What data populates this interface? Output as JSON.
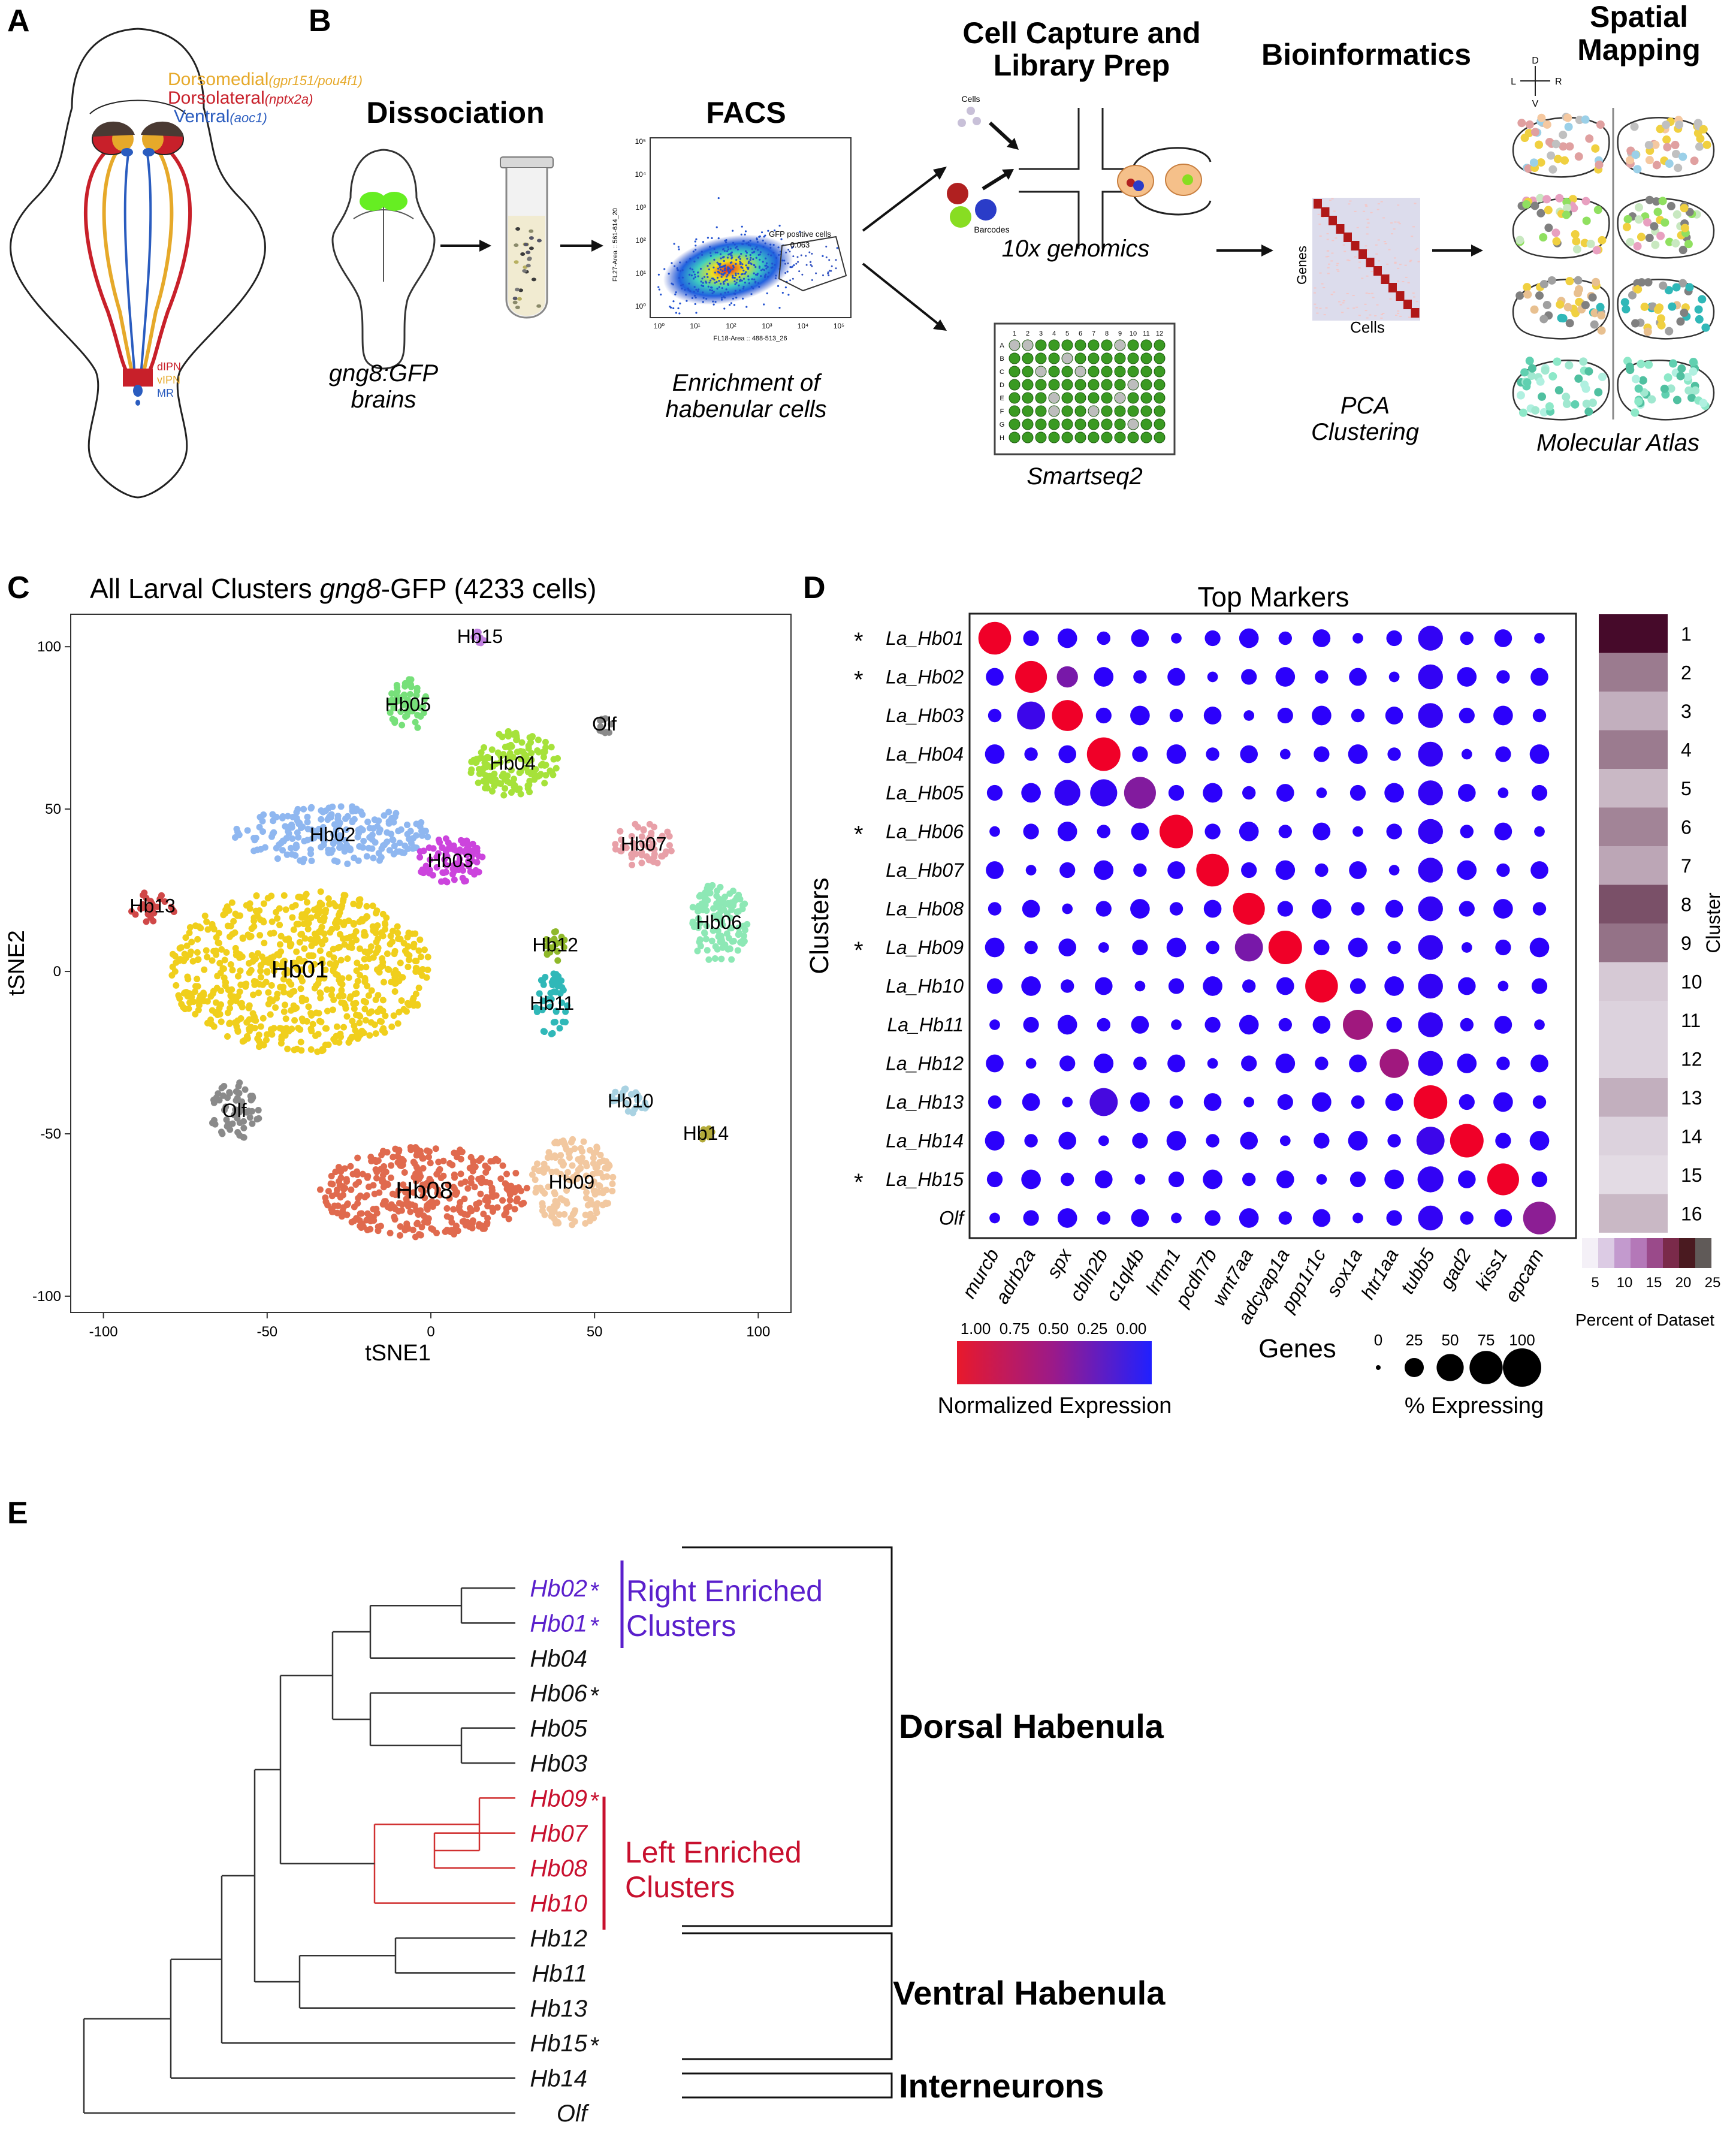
{
  "panel_letters": [
    "A",
    "B",
    "C",
    "D",
    "E"
  ],
  "panel_a": {
    "regions": [
      {
        "name": "Dorsomedial",
        "gene": "(gpr151/pou4f1)",
        "color": "#e6a92a"
      },
      {
        "name": "Dorsolateral",
        "gene": "(nptx2a)",
        "color": "#c8202a"
      },
      {
        "name": "Ventral",
        "gene": "(aoc1)",
        "color": "#2a5cbf"
      }
    ],
    "targets": [
      {
        "label": "dIPN",
        "color": "#c8202a"
      },
      {
        "label": "vIPN",
        "color": "#e6a92a"
      },
      {
        "label": "MR",
        "color": "#2a5cbf"
      }
    ]
  },
  "panel_b": {
    "dissociation": {
      "title": "Dissociation",
      "caption_line1": "gng8:GFP",
      "caption_line2": "brains"
    },
    "facs": {
      "title": "FACS",
      "gate_label": "GFP positive cells",
      "gate_value": "0.063",
      "y_axis": "FL27-Area :: 561-614_20",
      "x_axis": "FL18-Area :: 488-513_26",
      "ticks": [
        "10⁰",
        "10¹",
        "10²",
        "10³",
        "10⁴",
        "10⁵"
      ],
      "caption_line1": "Enrichment of",
      "caption_line2": "habenular cells"
    },
    "capture": {
      "title_line1": "Cell Capture and",
      "title_line2": "Library Prep",
      "cells_label": "Cells",
      "barcodes_label": "Barcodes",
      "method1": "10x genomics",
      "method2": "Smartseq2",
      "plate_cols": [
        "1",
        "2",
        "3",
        "4",
        "5",
        "6",
        "7",
        "8",
        "9",
        "10",
        "11",
        "12"
      ],
      "plate_rows": [
        "A",
        "B",
        "C",
        "D",
        "E",
        "F",
        "G",
        "H"
      ]
    },
    "bioinformatics": {
      "title": "Bioinformatics",
      "genes_label": "Genes",
      "cells_label": "Cells",
      "caption_line1": "PCA",
      "caption_line2": "Clustering"
    },
    "spatial": {
      "title_line1": "Spatial",
      "title_line2": "Mapping",
      "compass": [
        "D",
        "L",
        "R",
        "V"
      ],
      "caption": "Molecular Atlas"
    }
  },
  "panel_c": {
    "title_prefix": "All Larval Clusters ",
    "title_gene": "gng8",
    "title_suffix": "-GFP (4233 cells)",
    "chart_data": {
      "type": "scatter",
      "xlabel": "tSNE1",
      "ylabel": "tSNE2",
      "xlim": [
        -110,
        110
      ],
      "ylim": [
        -105,
        110
      ],
      "xticks": [
        -100,
        -50,
        0,
        50,
        100
      ],
      "yticks": [
        -100,
        -50,
        0,
        50,
        100
      ],
      "clusters": [
        {
          "label": "Hb01",
          "cx": -40,
          "cy": 0,
          "rx": 40,
          "ry": 25,
          "n": 700,
          "color": "#f0cf1c"
        },
        {
          "label": "Hb02",
          "cx": -30,
          "cy": 42,
          "rx": 30,
          "ry": 9,
          "n": 220,
          "color": "#8fb7f0"
        },
        {
          "label": "Hb03",
          "cx": 6,
          "cy": 34,
          "rx": 11,
          "ry": 7,
          "n": 90,
          "color": "#cc44dd"
        },
        {
          "label": "Hb04",
          "cx": 25,
          "cy": 64,
          "rx": 14,
          "ry": 10,
          "n": 150,
          "color": "#a6e23a"
        },
        {
          "label": "Hb05",
          "cx": -7,
          "cy": 82,
          "rx": 6,
          "ry": 8,
          "n": 55,
          "color": "#77e07a"
        },
        {
          "label": "Hb06",
          "cx": 88,
          "cy": 15,
          "rx": 9,
          "ry": 13,
          "n": 120,
          "color": "#8de8b5"
        },
        {
          "label": "Hb07",
          "cx": 65,
          "cy": 39,
          "rx": 9,
          "ry": 7,
          "n": 60,
          "color": "#e8a0a8"
        },
        {
          "label": "Hb08",
          "cx": -2,
          "cy": -68,
          "rx": 32,
          "ry": 14,
          "n": 380,
          "color": "#e06a4e"
        },
        {
          "label": "Hb09",
          "cx": 43,
          "cy": -65,
          "rx": 13,
          "ry": 14,
          "n": 160,
          "color": "#f2c8a0"
        },
        {
          "label": "Hb10",
          "cx": 61,
          "cy": -40,
          "rx": 7,
          "ry": 4,
          "n": 25,
          "color": "#a9d2e2"
        },
        {
          "label": "Hb11",
          "cx": 37,
          "cy": -10,
          "rx": 5,
          "ry": 10,
          "n": 45,
          "color": "#30b8b8"
        },
        {
          "label": "Hb12",
          "cx": 38,
          "cy": 8,
          "rx": 3,
          "ry": 5,
          "n": 20,
          "color": "#8fb82a"
        },
        {
          "label": "Hb13",
          "cx": -85,
          "cy": 20,
          "rx": 7,
          "ry": 5,
          "n": 30,
          "color": "#d04848"
        },
        {
          "label": "Hb14",
          "cx": 84,
          "cy": -50,
          "rx": 2,
          "ry": 2,
          "n": 8,
          "color": "#b4ab3a"
        },
        {
          "label": "Hb15",
          "cx": 15,
          "cy": 103,
          "rx": 2,
          "ry": 2,
          "n": 8,
          "color": "#c080e0"
        },
        {
          "label": "Olf",
          "cx": 53,
          "cy": 76,
          "rx": 4,
          "ry": 3,
          "n": 12,
          "color": "#8a8a8a"
        },
        {
          "label": "Olf",
          "cx": -60,
          "cy": -43,
          "rx": 8,
          "ry": 9,
          "n": 60,
          "color": "#8a8a8a"
        }
      ]
    }
  },
  "panel_d": {
    "chart_data": {
      "type": "dot",
      "title": "Top Markers",
      "ylabel": "Clusters",
      "xlabel": "Genes",
      "rows": [
        "La_Hb01",
        "La_Hb02",
        "La_Hb03",
        "La_Hb04",
        "La_Hb05",
        "La_Hb06",
        "La_Hb07",
        "La_Hb08",
        "La_Hb09",
        "La_Hb10",
        "La_Hb11",
        "La_Hb12",
        "La_Hb13",
        "La_Hb14",
        "La_Hb15",
        "Olf"
      ],
      "starred_rows": [
        0,
        1,
        5,
        8,
        14
      ],
      "genes": [
        "murcb",
        "adrb2a",
        "spx",
        "cbln2b",
        "c1ql4b",
        "lrrtm1",
        "pcdh7b",
        "wnt7aa",
        "adcyap1a",
        "ppp1r1c",
        "sox1a",
        "htr1aa",
        "tubb5",
        "gad2",
        "kiss1",
        "epcam"
      ],
      "highlight": [
        [
          0,
          0,
          1.0,
          95
        ],
        [
          1,
          1,
          1.0,
          90
        ],
        [
          2,
          2,
          1.0,
          85
        ],
        [
          3,
          3,
          1.0,
          100
        ],
        [
          4,
          4,
          0.45,
          90
        ],
        [
          5,
          5,
          1.0,
          100
        ],
        [
          6,
          6,
          1.0,
          95
        ],
        [
          7,
          7,
          1.0,
          90
        ],
        [
          8,
          8,
          1.0,
          100
        ],
        [
          9,
          9,
          1.0,
          95
        ],
        [
          10,
          10,
          0.6,
          80
        ],
        [
          11,
          11,
          0.6,
          75
        ],
        [
          12,
          12,
          1.0,
          100
        ],
        [
          13,
          13,
          1.0,
          100
        ],
        [
          14,
          14,
          1.0,
          90
        ],
        [
          15,
          15,
          0.5,
          95
        ]
      ],
      "extra": [
        [
          1,
          2,
          0.4,
          40
        ],
        [
          2,
          1,
          0.1,
          70
        ],
        [
          4,
          2,
          0.05,
          60
        ],
        [
          4,
          3,
          0.05,
          65
        ],
        [
          7,
          7,
          1.0,
          90
        ],
        [
          8,
          7,
          0.4,
          70
        ],
        [
          12,
          3,
          0.15,
          70
        ],
        [
          13,
          12,
          0.1,
          70
        ],
        [
          14,
          12,
          0.05,
          60
        ]
      ],
      "color_scale_label": "Normalized Expression",
      "color_ticks": [
        "1.00",
        "0.75",
        "0.50",
        "0.25",
        "0.00"
      ],
      "size_legend_label": "% Expressing",
      "size_ticks": [
        "0",
        "25",
        "50",
        "75",
        "100"
      ],
      "cluster_pct": [
        26,
        13,
        7,
        13,
        6,
        12,
        8,
        18,
        14,
        4,
        3,
        3,
        7,
        3,
        2,
        6
      ],
      "cluster_numbers": [
        "1",
        "2",
        "3",
        "4",
        "5",
        "6",
        "7",
        "8",
        "9",
        "10",
        "11",
        "12",
        "13",
        "14",
        "15",
        "16"
      ],
      "cluster_axis_label": "Cluster",
      "pct_ticks": [
        "5",
        "10",
        "15",
        "20",
        "25"
      ],
      "pct_label": "Percent of Dataset"
    }
  },
  "panel_e": {
    "leaves": [
      {
        "label": "Hb02",
        "star": true,
        "color": "#5a1fcc"
      },
      {
        "label": "Hb01",
        "star": true,
        "color": "#5a1fcc"
      },
      {
        "label": "Hb04",
        "star": false,
        "color": "#111111"
      },
      {
        "label": "Hb06",
        "star": true,
        "color": "#111111"
      },
      {
        "label": "Hb05",
        "star": false,
        "color": "#111111"
      },
      {
        "label": "Hb03",
        "star": false,
        "color": "#111111"
      },
      {
        "label": "Hb09",
        "star": true,
        "color": "#c8102e"
      },
      {
        "label": "Hb07",
        "star": false,
        "color": "#c8102e"
      },
      {
        "label": "Hb08",
        "star": false,
        "color": "#c8102e"
      },
      {
        "label": "Hb10",
        "star": false,
        "color": "#c8102e"
      },
      {
        "label": "Hb12",
        "star": false,
        "color": "#111111"
      },
      {
        "label": "Hb11",
        "star": false,
        "color": "#111111"
      },
      {
        "label": "Hb13",
        "star": false,
        "color": "#111111"
      },
      {
        "label": "Hb15",
        "star": true,
        "color": "#111111"
      },
      {
        "label": "Hb14",
        "star": false,
        "color": "#111111"
      },
      {
        "label": "Olf",
        "star": false,
        "color": "#111111"
      }
    ],
    "groups": {
      "right_line1": "Right Enriched",
      "right_line2": "Clusters",
      "left_line1": "Left Enriched",
      "left_line2": "Clusters",
      "dorsal": "Dorsal Habenula",
      "ventral": "Ventral Habenula",
      "inter": "Interneurons"
    }
  }
}
